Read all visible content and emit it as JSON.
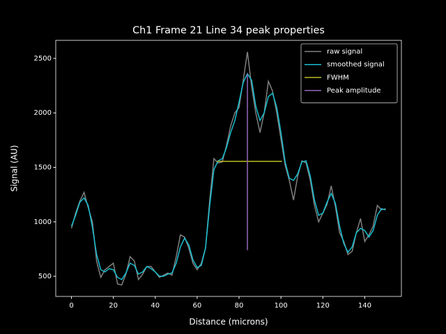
{
  "chart_data": {
    "type": "line",
    "title": "Ch1 Frame 21 Line 34 peak properties",
    "x_label": "Distance (microns)",
    "y_label": "Signal (AU)",
    "xlim": [
      -7.5,
      157.5
    ],
    "ylim": [
      315,
      2666
    ],
    "xticks": [
      0,
      20,
      40,
      60,
      80,
      100,
      120,
      140
    ],
    "yticks": [
      500,
      1000,
      1500,
      2000,
      2500
    ],
    "legend": "upper right",
    "grid": false,
    "series": [
      {
        "name": "raw signal",
        "color": "#808080",
        "x": [
          0,
          2,
          4,
          6,
          8,
          10,
          12,
          14,
          16,
          18,
          20,
          22,
          24,
          26,
          28,
          30,
          32,
          34,
          36,
          38,
          40,
          42,
          44,
          46,
          48,
          50,
          52,
          54,
          56,
          58,
          60,
          62,
          64,
          66,
          68,
          70,
          72,
          74,
          76,
          78,
          80,
          82,
          84,
          86,
          88,
          90,
          92,
          94,
          96,
          98,
          100,
          102,
          104,
          106,
          108,
          110,
          112,
          114,
          116,
          118,
          120,
          122,
          124,
          126,
          128,
          130,
          132,
          134,
          136,
          138,
          140,
          142,
          144,
          146,
          148,
          150
        ],
        "values": [
          940,
          1080,
          1190,
          1270,
          1130,
          1000,
          640,
          490,
          560,
          590,
          620,
          430,
          420,
          520,
          680,
          640,
          470,
          520,
          590,
          590,
          540,
          490,
          510,
          530,
          510,
          680,
          880,
          860,
          760,
          620,
          560,
          620,
          760,
          1200,
          1580,
          1540,
          1550,
          1700,
          1880,
          2000,
          2050,
          2300,
          2560,
          2240,
          2000,
          1820,
          2000,
          2290,
          2200,
          2000,
          1760,
          1520,
          1380,
          1200,
          1420,
          1560,
          1540,
          1380,
          1150,
          1000,
          1080,
          1160,
          1330,
          1140,
          900,
          820,
          700,
          730,
          900,
          1030,
          820,
          880,
          960,
          1150,
          1110,
          1120
        ]
      },
      {
        "name": "smoothed signal",
        "color": "#17becf",
        "x": [
          0,
          2,
          4,
          6,
          8,
          10,
          12,
          14,
          16,
          18,
          20,
          22,
          24,
          26,
          28,
          30,
          32,
          34,
          36,
          38,
          40,
          42,
          44,
          46,
          48,
          50,
          52,
          54,
          56,
          58,
          60,
          62,
          64,
          66,
          68,
          70,
          72,
          74,
          76,
          78,
          80,
          82,
          84,
          86,
          88,
          90,
          92,
          94,
          96,
          98,
          100,
          102,
          104,
          106,
          108,
          110,
          112,
          114,
          116,
          118,
          120,
          122,
          124,
          126,
          128,
          130,
          132,
          134,
          136,
          138,
          140,
          142,
          144,
          146,
          148,
          150
        ],
        "values": [
          960,
          1060,
          1180,
          1220,
          1150,
          950,
          700,
          560,
          540,
          570,
          560,
          490,
          470,
          530,
          620,
          600,
          520,
          540,
          590,
          570,
          540,
          500,
          500,
          520,
          530,
          620,
          770,
          850,
          790,
          650,
          580,
          600,
          760,
          1150,
          1480,
          1560,
          1580,
          1680,
          1820,
          1930,
          2100,
          2280,
          2360,
          2300,
          2060,
          1930,
          2000,
          2150,
          2180,
          2050,
          1820,
          1550,
          1400,
          1380,
          1440,
          1550,
          1560,
          1420,
          1200,
          1060,
          1080,
          1180,
          1260,
          1170,
          960,
          800,
          720,
          770,
          900,
          940,
          920,
          860,
          920,
          1060,
          1120,
          1110
        ]
      },
      {
        "name": "FWHM",
        "color": "#bcbd22",
        "x": [
          69.5,
          100.5
        ],
        "values": [
          1555,
          1555
        ]
      },
      {
        "name": "Peak amplitude",
        "color": "#9467bd",
        "x": [
          84,
          84
        ],
        "values": [
          740,
          2360
        ]
      }
    ]
  }
}
